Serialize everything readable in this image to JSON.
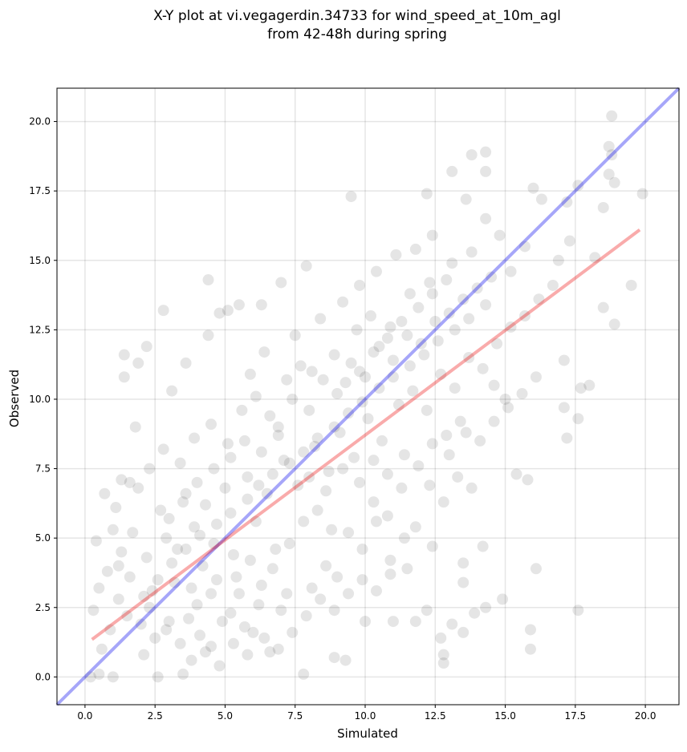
{
  "chart_data": {
    "type": "scatter",
    "title_line1": "X-Y plot at vi.vegagerdin.34733 for wind_speed_at_10m_agl",
    "title_line2": "from 42-48h during spring",
    "xlabel": "Simulated",
    "ylabel": "Observed",
    "xlim": [
      -1.0,
      21.2
    ],
    "ylim": [
      -1.0,
      21.2
    ],
    "xticks": [
      0.0,
      2.5,
      5.0,
      7.5,
      10.0,
      12.5,
      15.0,
      17.5,
      20.0
    ],
    "yticks": [
      0.0,
      2.5,
      5.0,
      7.5,
      10.0,
      12.5,
      15.0,
      17.5,
      20.0
    ],
    "xtick_labels": [
      "0.0",
      "2.5",
      "5.0",
      "7.5",
      "10.0",
      "12.5",
      "15.0",
      "17.5",
      "20.0"
    ],
    "ytick_labels": [
      "0.0",
      "2.5",
      "5.0",
      "7.5",
      "10.0",
      "12.5",
      "15.0",
      "17.5",
      "20.0"
    ],
    "grid": true,
    "point_color": "#000000",
    "point_alpha": 0.1,
    "series": [
      {
        "points": [
          [
            18.8,
            20.2
          ],
          [
            18.7,
            19.1
          ],
          [
            18.8,
            18.8
          ],
          [
            18.7,
            18.1
          ],
          [
            18.9,
            17.8
          ],
          [
            19.9,
            17.4
          ],
          [
            17.6,
            17.7
          ],
          [
            18.5,
            16.9
          ],
          [
            16.0,
            17.6
          ],
          [
            16.3,
            17.2
          ],
          [
            17.2,
            17.1
          ],
          [
            13.8,
            18.8
          ],
          [
            14.3,
            18.9
          ],
          [
            14.3,
            18.2
          ],
          [
            13.1,
            18.2
          ],
          [
            13.6,
            17.2
          ],
          [
            12.2,
            17.4
          ],
          [
            9.5,
            17.3
          ],
          [
            15.2,
            14.6
          ],
          [
            15.7,
            15.5
          ],
          [
            14.8,
            15.9
          ],
          [
            14.3,
            16.5
          ],
          [
            17.3,
            15.7
          ],
          [
            16.9,
            15.0
          ],
          [
            18.2,
            15.1
          ],
          [
            18.5,
            13.3
          ],
          [
            19.5,
            14.1
          ],
          [
            18.9,
            12.7
          ],
          [
            17.1,
            11.4
          ],
          [
            17.7,
            10.4
          ],
          [
            18.0,
            10.5
          ],
          [
            17.1,
            9.7
          ],
          [
            17.6,
            9.3
          ],
          [
            17.2,
            8.6
          ],
          [
            15.4,
            7.3
          ],
          [
            15.8,
            7.1
          ],
          [
            16.1,
            3.9
          ],
          [
            15.9,
            1.7
          ],
          [
            15.9,
            1.0
          ],
          [
            17.6,
            2.4
          ],
          [
            14.3,
            2.5
          ],
          [
            14.9,
            2.8
          ],
          [
            13.9,
            2.3
          ],
          [
            13.1,
            1.9
          ],
          [
            12.8,
            0.8
          ],
          [
            12.8,
            0.5
          ],
          [
            13.5,
            1.6
          ],
          [
            12.7,
            1.4
          ],
          [
            11.8,
            2.0
          ],
          [
            11.0,
            2.0
          ],
          [
            10.0,
            2.0
          ],
          [
            12.2,
            2.4
          ],
          [
            12.4,
            4.7
          ],
          [
            13.5,
            3.4
          ],
          [
            13.5,
            4.1
          ],
          [
            14.2,
            4.7
          ],
          [
            2.8,
            13.2
          ],
          [
            2.2,
            11.9
          ],
          [
            1.9,
            11.3
          ],
          [
            1.4,
            11.6
          ],
          [
            1.4,
            10.8
          ],
          [
            3.6,
            11.3
          ],
          [
            4.4,
            14.3
          ],
          [
            5.1,
            13.2
          ],
          [
            5.5,
            13.4
          ],
          [
            6.3,
            13.4
          ],
          [
            4.8,
            13.1
          ],
          [
            4.4,
            12.3
          ],
          [
            7.0,
            14.2
          ],
          [
            7.9,
            14.8
          ],
          [
            3.1,
            10.3
          ],
          [
            1.8,
            9.0
          ],
          [
            0.2,
            0.0
          ],
          [
            0.5,
            0.1
          ],
          [
            1.0,
            0.0
          ],
          [
            2.6,
            0.0
          ],
          [
            3.5,
            0.1
          ],
          [
            7.8,
            0.1
          ],
          [
            8.9,
            0.7
          ],
          [
            9.3,
            0.6
          ],
          [
            2.5,
            1.4
          ],
          [
            3.0,
            2.0
          ],
          [
            3.4,
            1.2
          ],
          [
            4.0,
            2.6
          ],
          [
            4.5,
            1.1
          ],
          [
            5.2,
            2.3
          ],
          [
            6.0,
            1.6
          ],
          [
            6.6,
            0.9
          ],
          [
            1.2,
            2.8
          ],
          [
            1.6,
            3.6
          ],
          [
            2.0,
            1.9
          ],
          [
            2.4,
            3.1
          ],
          [
            3.8,
            3.2
          ],
          [
            4.2,
            4.0
          ],
          [
            4.7,
            3.5
          ],
          [
            5.5,
            3.0
          ],
          [
            1.3,
            4.5
          ],
          [
            2.2,
            4.3
          ],
          [
            2.9,
            5.0
          ],
          [
            3.3,
            4.6
          ],
          [
            3.9,
            5.4
          ],
          [
            4.6,
            4.8
          ],
          [
            5.3,
            4.4
          ],
          [
            6.1,
            5.6
          ],
          [
            0.8,
            3.8
          ],
          [
            1.7,
            5.2
          ],
          [
            2.7,
            6.0
          ],
          [
            3.6,
            6.6
          ],
          [
            4.3,
            6.2
          ],
          [
            5.0,
            6.8
          ],
          [
            5.8,
            7.2
          ],
          [
            6.5,
            6.6
          ],
          [
            7.1,
            7.8
          ],
          [
            7.6,
            6.9
          ],
          [
            8.2,
            8.3
          ],
          [
            8.7,
            7.4
          ],
          [
            9.1,
            8.8
          ],
          [
            9.6,
            7.9
          ],
          [
            10.1,
            9.3
          ],
          [
            10.6,
            8.5
          ],
          [
            6.9,
            9.0
          ],
          [
            7.4,
            10.0
          ],
          [
            8.0,
            9.6
          ],
          [
            8.5,
            10.7
          ],
          [
            9.0,
            10.2
          ],
          [
            9.5,
            11.3
          ],
          [
            10.0,
            10.8
          ],
          [
            10.5,
            11.9
          ],
          [
            11.0,
            11.4
          ],
          [
            11.5,
            12.3
          ],
          [
            12.0,
            12.0
          ],
          [
            12.5,
            12.8
          ],
          [
            13.0,
            13.1
          ],
          [
            13.5,
            13.6
          ],
          [
            14.0,
            14.0
          ],
          [
            14.5,
            14.4
          ],
          [
            11.2,
            9.8
          ],
          [
            11.7,
            10.3
          ],
          [
            12.2,
            9.6
          ],
          [
            12.7,
            10.9
          ],
          [
            13.2,
            10.4
          ],
          [
            13.7,
            11.5
          ],
          [
            14.2,
            11.1
          ],
          [
            14.7,
            12.0
          ],
          [
            15.2,
            12.6
          ],
          [
            15.7,
            13.0
          ],
          [
            16.2,
            13.6
          ],
          [
            16.7,
            14.1
          ],
          [
            15.0,
            10.0
          ],
          [
            14.6,
            10.5
          ],
          [
            13.4,
            9.2
          ],
          [
            12.9,
            8.7
          ],
          [
            10.3,
            6.3
          ],
          [
            10.8,
            5.8
          ],
          [
            11.3,
            6.8
          ],
          [
            11.8,
            5.4
          ],
          [
            12.3,
            6.9
          ],
          [
            12.8,
            6.3
          ],
          [
            13.3,
            7.2
          ],
          [
            13.8,
            6.8
          ],
          [
            9.4,
            5.2
          ],
          [
            9.9,
            4.6
          ],
          [
            10.4,
            5.6
          ],
          [
            10.9,
            4.2
          ],
          [
            11.4,
            5.0
          ],
          [
            8.6,
            4.0
          ],
          [
            9.0,
            3.6
          ],
          [
            8.1,
            3.2
          ],
          [
            7.3,
            4.8
          ],
          [
            7.8,
            5.6
          ],
          [
            8.3,
            6.0
          ],
          [
            8.8,
            5.3
          ],
          [
            6.7,
            3.9
          ],
          [
            7.2,
            3.0
          ],
          [
            6.2,
            2.6
          ],
          [
            5.7,
            1.8
          ],
          [
            7.5,
            12.3
          ],
          [
            8.4,
            12.9
          ],
          [
            9.2,
            13.5
          ],
          [
            9.8,
            14.1
          ],
          [
            10.4,
            14.6
          ],
          [
            11.1,
            15.2
          ],
          [
            11.8,
            15.4
          ],
          [
            12.4,
            15.9
          ],
          [
            8.9,
            11.6
          ],
          [
            9.7,
            12.5
          ],
          [
            10.2,
            13.0
          ],
          [
            10.9,
            12.6
          ],
          [
            11.6,
            13.8
          ],
          [
            12.3,
            14.2
          ],
          [
            13.1,
            14.9
          ],
          [
            13.8,
            15.3
          ],
          [
            0.6,
            1.0
          ],
          [
            0.9,
            1.7
          ],
          [
            1.5,
            2.2
          ],
          [
            2.1,
            0.8
          ],
          [
            2.3,
            2.5
          ],
          [
            2.9,
            1.7
          ],
          [
            3.2,
            3.4
          ],
          [
            3.7,
            2.1
          ],
          [
            4.1,
            1.5
          ],
          [
            4.5,
            3.0
          ],
          [
            4.9,
            2.0
          ],
          [
            5.4,
            3.6
          ],
          [
            5.9,
            4.2
          ],
          [
            6.3,
            3.3
          ],
          [
            6.8,
            4.6
          ],
          [
            7.0,
            2.4
          ],
          [
            1.1,
            6.1
          ],
          [
            1.6,
            7.0
          ],
          [
            2.3,
            7.5
          ],
          [
            2.8,
            8.2
          ],
          [
            3.4,
            7.7
          ],
          [
            3.9,
            8.6
          ],
          [
            4.5,
            9.1
          ],
          [
            5.1,
            8.4
          ],
          [
            5.6,
            9.6
          ],
          [
            6.1,
            10.1
          ],
          [
            6.6,
            9.4
          ],
          [
            7.2,
            10.7
          ],
          [
            7.7,
            11.2
          ],
          [
            8.1,
            11.0
          ],
          [
            6.4,
            11.7
          ],
          [
            5.9,
            10.9
          ],
          [
            3.0,
            5.7
          ],
          [
            3.5,
            6.3
          ],
          [
            4.0,
            7.0
          ],
          [
            4.6,
            7.5
          ],
          [
            5.2,
            7.9
          ],
          [
            5.7,
            8.5
          ],
          [
            6.3,
            8.1
          ],
          [
            6.9,
            8.7
          ],
          [
            2.1,
            2.9
          ],
          [
            2.6,
            3.5
          ],
          [
            3.1,
            4.1
          ],
          [
            3.6,
            4.6
          ],
          [
            4.1,
            5.1
          ],
          [
            4.7,
            5.5
          ],
          [
            5.2,
            5.9
          ],
          [
            5.8,
            6.4
          ],
          [
            6.2,
            6.9
          ],
          [
            6.7,
            7.3
          ],
          [
            7.3,
            7.7
          ],
          [
            7.8,
            8.1
          ],
          [
            8.3,
            8.6
          ],
          [
            8.9,
            9.0
          ],
          [
            9.4,
            9.5
          ],
          [
            9.9,
            9.9
          ],
          [
            10.5,
            10.4
          ],
          [
            11.0,
            10.8
          ],
          [
            11.6,
            11.2
          ],
          [
            12.1,
            11.6
          ],
          [
            12.6,
            12.1
          ],
          [
            13.2,
            12.5
          ],
          [
            13.7,
            12.9
          ],
          [
            14.3,
            13.4
          ],
          [
            1.0,
            5.3
          ],
          [
            0.4,
            4.9
          ],
          [
            0.7,
            6.6
          ],
          [
            1.3,
            7.1
          ],
          [
            1.9,
            6.8
          ],
          [
            0.3,
            2.4
          ],
          [
            0.5,
            3.2
          ],
          [
            1.2,
            4.0
          ],
          [
            8.0,
            7.2
          ],
          [
            8.6,
            6.7
          ],
          [
            9.2,
            7.5
          ],
          [
            9.8,
            7.0
          ],
          [
            10.3,
            7.8
          ],
          [
            10.8,
            7.3
          ],
          [
            11.4,
            8.0
          ],
          [
            11.9,
            7.6
          ],
          [
            12.4,
            8.4
          ],
          [
            13.0,
            8.0
          ],
          [
            13.6,
            8.8
          ],
          [
            14.1,
            8.5
          ],
          [
            14.6,
            9.2
          ],
          [
            15.1,
            9.7
          ],
          [
            15.6,
            10.2
          ],
          [
            16.1,
            10.8
          ],
          [
            9.3,
            10.6
          ],
          [
            9.8,
            11.0
          ],
          [
            10.3,
            11.7
          ],
          [
            10.8,
            12.2
          ],
          [
            11.3,
            12.8
          ],
          [
            11.9,
            13.3
          ],
          [
            12.4,
            13.8
          ],
          [
            12.9,
            14.3
          ],
          [
            3.8,
            0.6
          ],
          [
            4.3,
            0.9
          ],
          [
            4.8,
            0.4
          ],
          [
            5.3,
            1.2
          ],
          [
            5.8,
            0.8
          ],
          [
            6.4,
            1.4
          ],
          [
            6.9,
            1.0
          ],
          [
            7.4,
            1.6
          ],
          [
            7.9,
            2.2
          ],
          [
            8.4,
            2.8
          ],
          [
            8.9,
            2.4
          ],
          [
            9.4,
            3.0
          ],
          [
            9.9,
            3.5
          ],
          [
            10.4,
            3.1
          ],
          [
            10.9,
            3.7
          ],
          [
            11.5,
            3.9
          ]
        ]
      }
    ],
    "lines": [
      {
        "color": "#0000ee",
        "alpha": 0.35,
        "points": [
          [
            -1.0,
            -1.0
          ],
          [
            21.2,
            21.2
          ]
        ]
      },
      {
        "color": "#ee0000",
        "alpha": 0.33,
        "points": [
          [
            0.25,
            1.35
          ],
          [
            19.8,
            16.1
          ]
        ]
      }
    ]
  }
}
